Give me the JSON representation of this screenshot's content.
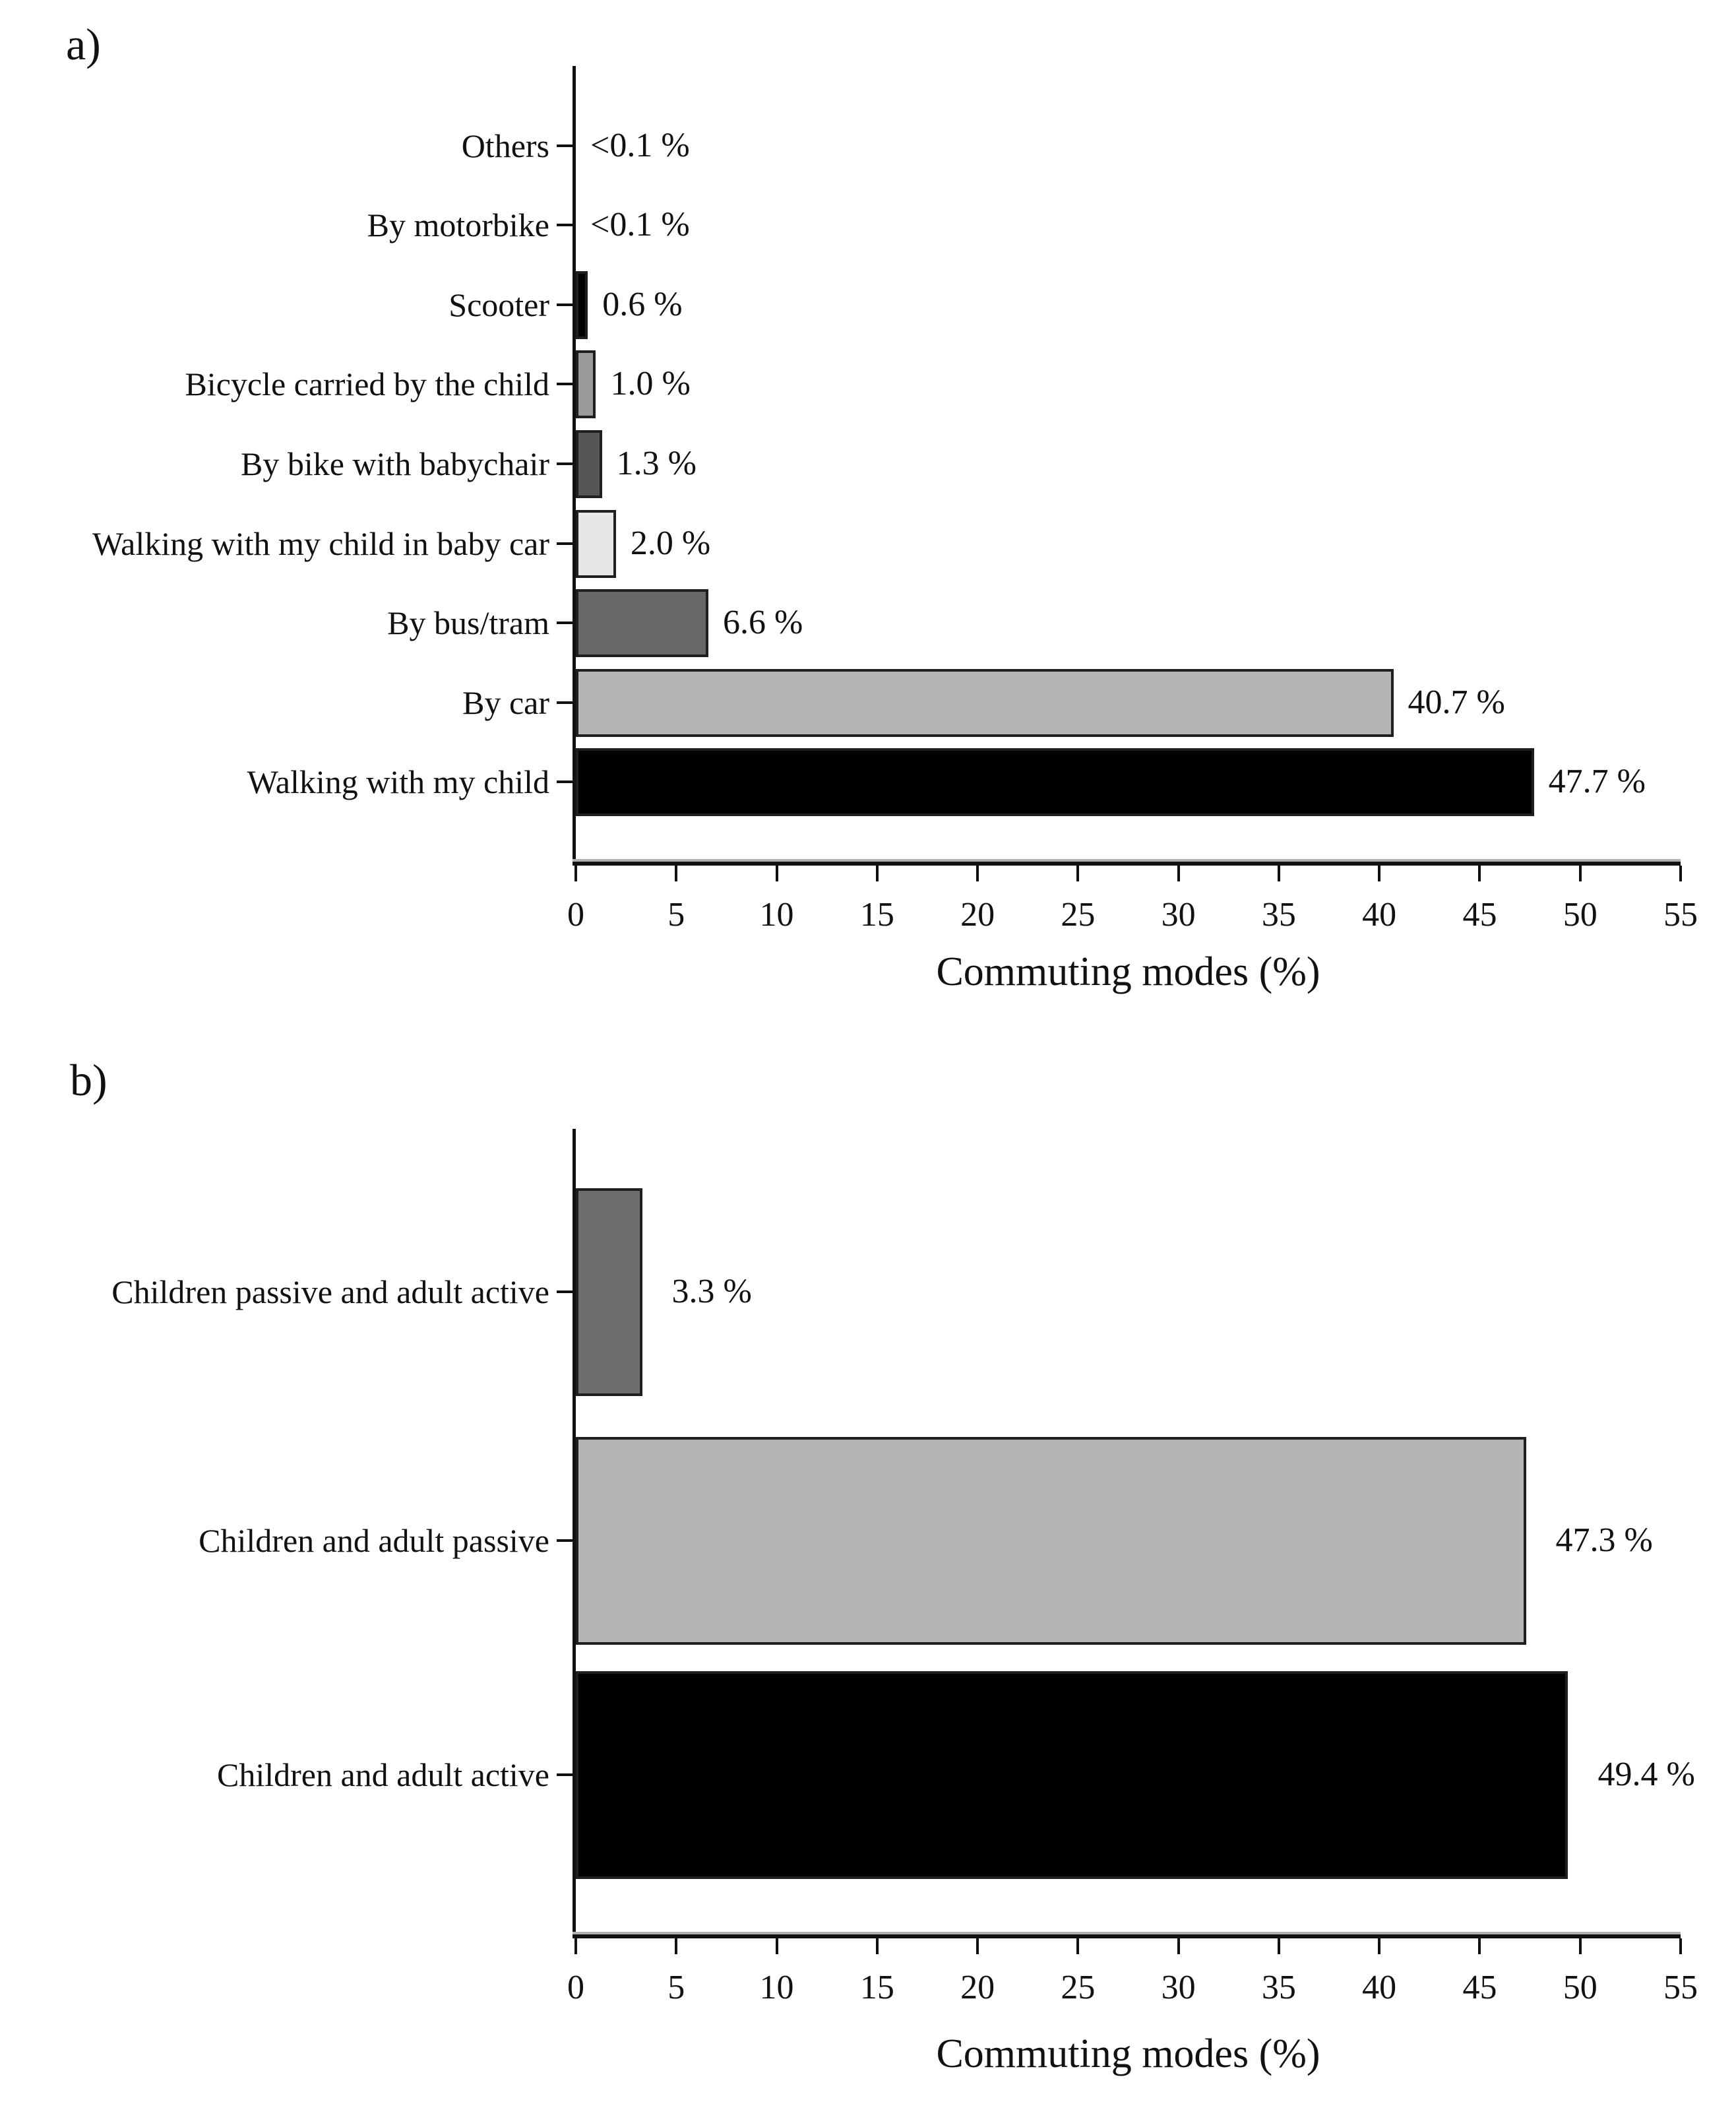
{
  "chart_data": [
    {
      "type": "bar",
      "orientation": "horizontal",
      "panel_label": "a)",
      "xlabel": "Commuting modes (%)",
      "xlim": [
        0,
        55
      ],
      "x_ticks": [
        0,
        5,
        10,
        15,
        20,
        25,
        30,
        35,
        40,
        45,
        50,
        55
      ],
      "x_tick_labels": [
        "0",
        "5",
        "10",
        "15",
        "20",
        "25",
        "30",
        "35",
        "40",
        "45",
        "50",
        "55"
      ],
      "grid": false,
      "legend": null,
      "categories": [
        "Others",
        "By motorbike",
        "Scooter",
        "Bicycle carried by the child",
        "By bike with babychair",
        "Walking with my child  in baby car",
        "By bus/tram",
        "By car",
        "Walking with my child"
      ],
      "values": [
        0.05,
        0.05,
        0.6,
        1.0,
        1.3,
        2.0,
        6.6,
        40.7,
        47.7
      ],
      "value_labels": [
        "<0.1 %",
        "<0.1 %",
        "0.6 %",
        "1.0 %",
        "1.3 %",
        "2.0 %",
        "6.6 %",
        "40.7 %",
        "47.7 %"
      ],
      "bar_colors": [
        "none",
        "none",
        "#000000",
        "#9a9a9a",
        "#565656",
        "#e7e7e7",
        "#686868",
        "#b5b5b5",
        "#000000"
      ]
    },
    {
      "type": "bar",
      "orientation": "horizontal",
      "panel_label": "b)",
      "xlabel": "Commuting modes (%)",
      "xlim": [
        0,
        55
      ],
      "x_ticks": [
        0,
        5,
        10,
        15,
        20,
        25,
        30,
        35,
        40,
        45,
        50,
        55
      ],
      "x_tick_labels": [
        "0",
        "5",
        "10",
        "15",
        "20",
        "25",
        "30",
        "35",
        "40",
        "45",
        "50",
        "55"
      ],
      "grid": false,
      "legend": null,
      "categories": [
        "Children passive and adult active",
        "Children and adult passive",
        "Children and adult active"
      ],
      "values": [
        3.3,
        47.3,
        49.4
      ],
      "value_labels": [
        "3.3 %",
        "47.3 %",
        "49.4 %"
      ],
      "bar_colors": [
        "#6e6e6e",
        "#b5b5b5",
        "#000000"
      ]
    }
  ]
}
